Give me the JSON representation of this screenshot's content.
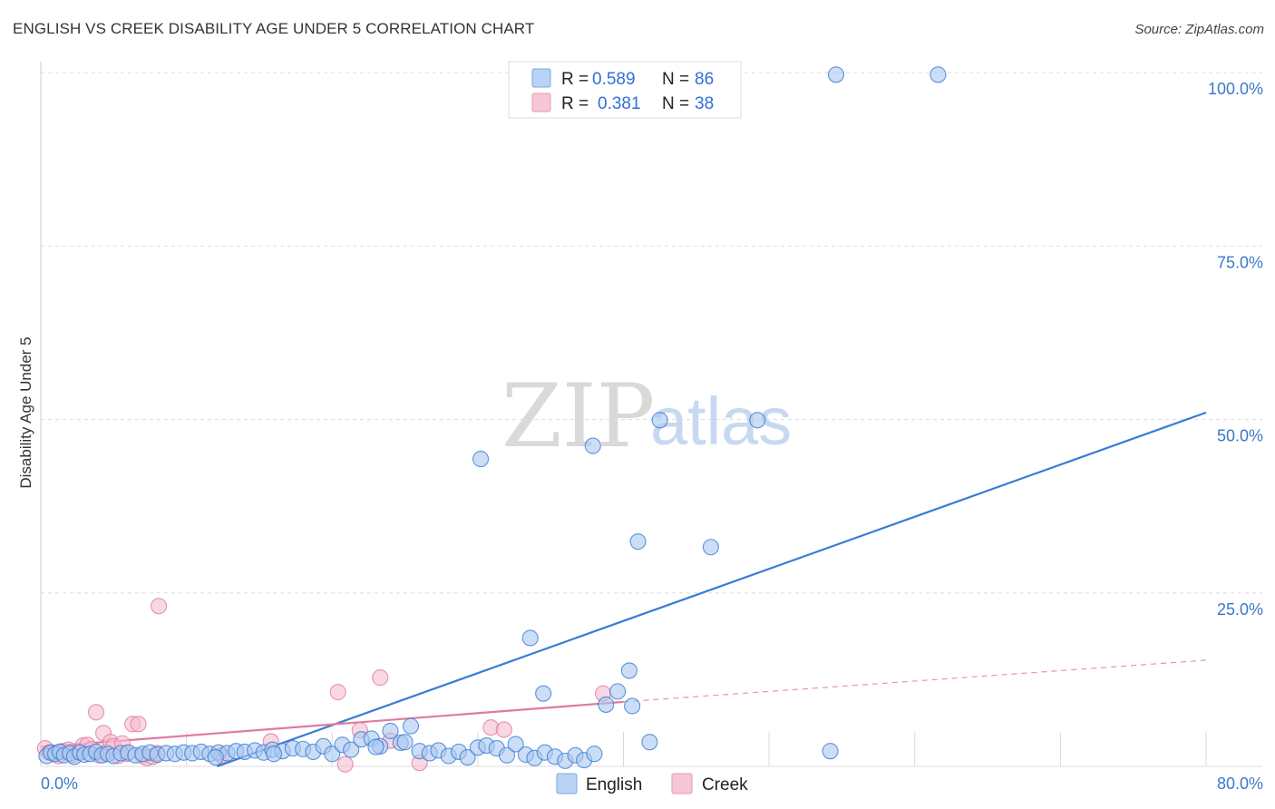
{
  "title": "ENGLISH VS CREEK DISABILITY AGE UNDER 5 CORRELATION CHART",
  "source": "Source: ZipAtlas.com",
  "watermark": {
    "zip": "ZIP",
    "atlas": "atlas"
  },
  "colors": {
    "english": "#3a7bd5",
    "english_fill": "#a9c8f0",
    "creek": "#e07aa0",
    "creek_fill": "#f5bcd0",
    "tick": "#3b78c9",
    "grid": "#dddddd"
  },
  "legend": {
    "items": [
      {
        "r_label": "R =",
        "r_value": "0.589",
        "n_label": "N =",
        "n_value": "86"
      },
      {
        "r_label": "R =",
        "r_value": "0.381",
        "n_label": "N =",
        "n_value": "38"
      }
    ]
  },
  "chart_data": {
    "type": "scatter",
    "title": "ENGLISH VS CREEK DISABILITY AGE UNDER 5 CORRELATION CHART",
    "xlabel": "",
    "ylabel": "Disability Age Under 5",
    "xlim": [
      0,
      80
    ],
    "ylim": [
      0,
      100
    ],
    "x_ticks": [
      "0.0%",
      "80.0%"
    ],
    "y_ticks": [
      "25.0%",
      "50.0%",
      "75.0%",
      "100.0%"
    ],
    "y_tick_values": [
      25,
      50,
      75,
      100
    ],
    "grid": true,
    "legend_position": "top-center",
    "series": [
      {
        "name": "English",
        "points": [
          [
            0.4,
            1.5
          ],
          [
            0.7,
            2.0
          ],
          [
            1.0,
            1.8
          ],
          [
            1.3,
            2.1
          ],
          [
            1.6,
            1.6
          ],
          [
            2.0,
            1.9
          ],
          [
            2.3,
            1.4
          ],
          [
            2.7,
            2.0
          ],
          [
            3.0,
            1.7
          ],
          [
            3.4,
            1.8
          ],
          [
            3.8,
            2.1
          ],
          [
            4.2,
            1.6
          ],
          [
            4.6,
            1.8
          ],
          [
            5.0,
            1.5
          ],
          [
            5.5,
            1.9
          ],
          [
            6.0,
            2.0
          ],
          [
            6.5,
            1.6
          ],
          [
            7.0,
            1.8
          ],
          [
            7.5,
            2.0
          ],
          [
            8.0,
            1.7
          ],
          [
            8.6,
            1.9
          ],
          [
            9.2,
            1.8
          ],
          [
            9.8,
            2.0
          ],
          [
            10.4,
            1.9
          ],
          [
            11.0,
            2.1
          ],
          [
            11.6,
            1.8
          ],
          [
            12.2,
            2.0
          ],
          [
            12.8,
            1.9
          ],
          [
            13.4,
            2.2
          ],
          [
            14.0,
            2.1
          ],
          [
            14.7,
            2.3
          ],
          [
            15.3,
            2.0
          ],
          [
            15.9,
            2.4
          ],
          [
            16.6,
            2.2
          ],
          [
            17.3,
            2.6
          ],
          [
            18.0,
            2.5
          ],
          [
            18.7,
            2.1
          ],
          [
            19.4,
            2.9
          ],
          [
            20.0,
            1.8
          ],
          [
            20.7,
            3.1
          ],
          [
            21.3,
            2.4
          ],
          [
            22.0,
            3.9
          ],
          [
            22.7,
            4.0
          ],
          [
            23.3,
            2.9
          ],
          [
            24.0,
            5.1
          ],
          [
            24.7,
            3.4
          ],
          [
            25.4,
            5.8
          ],
          [
            26.0,
            2.2
          ],
          [
            26.7,
            1.9
          ],
          [
            27.3,
            2.3
          ],
          [
            28.0,
            1.5
          ],
          [
            28.7,
            2.1
          ],
          [
            29.3,
            1.3
          ],
          [
            30.0,
            2.7
          ],
          [
            30.6,
            3.0
          ],
          [
            31.3,
            2.6
          ],
          [
            32.0,
            1.6
          ],
          [
            32.6,
            3.2
          ],
          [
            33.3,
            1.7
          ],
          [
            33.9,
            1.2
          ],
          [
            34.6,
            2.0
          ],
          [
            35.3,
            1.4
          ],
          [
            36.0,
            0.8
          ],
          [
            36.7,
            1.6
          ],
          [
            37.3,
            0.9
          ],
          [
            38.0,
            1.8
          ],
          [
            30.2,
            44.3
          ],
          [
            33.6,
            18.5
          ],
          [
            34.5,
            10.5
          ],
          [
            37.9,
            46.2
          ],
          [
            38.8,
            8.9
          ],
          [
            39.6,
            10.8
          ],
          [
            40.4,
            13.8
          ],
          [
            40.6,
            8.7
          ],
          [
            41.0,
            32.4
          ],
          [
            41.8,
            3.5
          ],
          [
            42.5,
            49.9
          ],
          [
            46.0,
            31.6
          ],
          [
            49.2,
            49.9
          ],
          [
            54.2,
            2.2
          ],
          [
            54.6,
            99.7
          ],
          [
            61.6,
            99.7
          ],
          [
            12.0,
            1.3
          ],
          [
            16.0,
            1.8
          ],
          [
            23.0,
            2.8
          ],
          [
            25.0,
            3.5
          ]
        ]
      },
      {
        "name": "Creek",
        "points": [
          [
            0.3,
            2.6
          ],
          [
            0.6,
            2.0
          ],
          [
            0.9,
            1.8
          ],
          [
            1.2,
            1.5
          ],
          [
            1.5,
            2.2
          ],
          [
            1.9,
            2.4
          ],
          [
            2.2,
            1.7
          ],
          [
            2.6,
            2.0
          ],
          [
            2.9,
            3.0
          ],
          [
            3.2,
            3.1
          ],
          [
            3.5,
            2.5
          ],
          [
            3.8,
            7.8
          ],
          [
            4.0,
            1.6
          ],
          [
            4.3,
            4.8
          ],
          [
            4.5,
            2.1
          ],
          [
            4.8,
            3.5
          ],
          [
            5.0,
            2.9
          ],
          [
            5.3,
            1.5
          ],
          [
            5.6,
            3.3
          ],
          [
            5.9,
            1.8
          ],
          [
            6.3,
            6.1
          ],
          [
            6.7,
            6.1
          ],
          [
            7.0,
            1.5
          ],
          [
            7.3,
            1.2
          ],
          [
            7.7,
            1.4
          ],
          [
            8.0,
            1.9
          ],
          [
            8.1,
            23.1
          ],
          [
            12.4,
            1.6
          ],
          [
            15.8,
            3.6
          ],
          [
            20.9,
            0.3
          ],
          [
            20.4,
            10.7
          ],
          [
            21.9,
            5.2
          ],
          [
            23.3,
            12.8
          ],
          [
            24.0,
            3.7
          ],
          [
            30.9,
            5.6
          ],
          [
            31.8,
            5.3
          ],
          [
            38.6,
            10.5
          ],
          [
            26.0,
            0.5
          ]
        ]
      }
    ],
    "trendlines": [
      {
        "series": "English",
        "x": [
          12.1,
          80.0
        ],
        "y": [
          0.0,
          51.0
        ]
      },
      {
        "series": "Creek",
        "x": [
          0.0,
          40.0
        ],
        "y": [
          2.8,
          9.3
        ],
        "dashed_to": [
          80.0,
          15.3
        ]
      }
    ]
  }
}
